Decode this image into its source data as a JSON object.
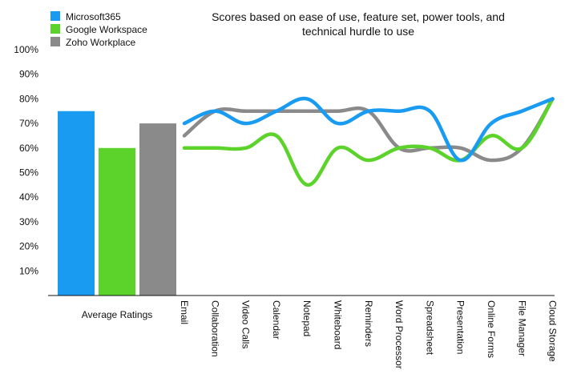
{
  "chart_data": [
    {
      "type": "bar",
      "title": "",
      "categories": [
        "Average Ratings"
      ],
      "series": [
        {
          "name": "Microsoft365",
          "color": "#1a9bf2",
          "values": [
            75
          ]
        },
        {
          "name": "Google Workspace",
          "color": "#5bd32a",
          "values": [
            60
          ]
        },
        {
          "name": "Zoho Workplace",
          "color": "#8a8a8a",
          "values": [
            70
          ]
        }
      ],
      "ylim": [
        0,
        100
      ],
      "y_unit": "%"
    },
    {
      "type": "line",
      "title_lines": [
        "Scores based on ease of use, feature set, power tools, and",
        "technical hurdle to use"
      ],
      "categories": [
        "Email",
        "Collaboration",
        "Video Calls",
        "Calendar",
        "Notepad",
        "Whiteboard",
        "Reminders",
        "Word Processor",
        "Spreadsheet",
        "Presentation",
        "Online Forms",
        "File Manager",
        "Cloud Storage"
      ],
      "series": [
        {
          "name": "Microsoft365",
          "color": "#1a9bf2",
          "values": [
            70,
            75,
            70,
            75,
            80,
            70,
            75,
            75,
            75,
            55,
            70,
            75,
            80
          ]
        },
        {
          "name": "Google Workspace",
          "color": "#5bd32a",
          "values": [
            60,
            60,
            60,
            65,
            45,
            60,
            55,
            60,
            60,
            55,
            65,
            60,
            80
          ]
        },
        {
          "name": "Zoho Workplace",
          "color": "#8a8a8a",
          "values": [
            65,
            75,
            75,
            75,
            75,
            75,
            75,
            60,
            60,
            60,
            55,
            60,
            80
          ]
        }
      ],
      "ylim": [
        0,
        100
      ],
      "y_unit": "%",
      "yticks": [
        "10%",
        "20%",
        "30%",
        "40%",
        "50%",
        "60%",
        "70%",
        "80%",
        "90%",
        "100%"
      ],
      "grid": false,
      "legend_position": "top-left"
    }
  ]
}
